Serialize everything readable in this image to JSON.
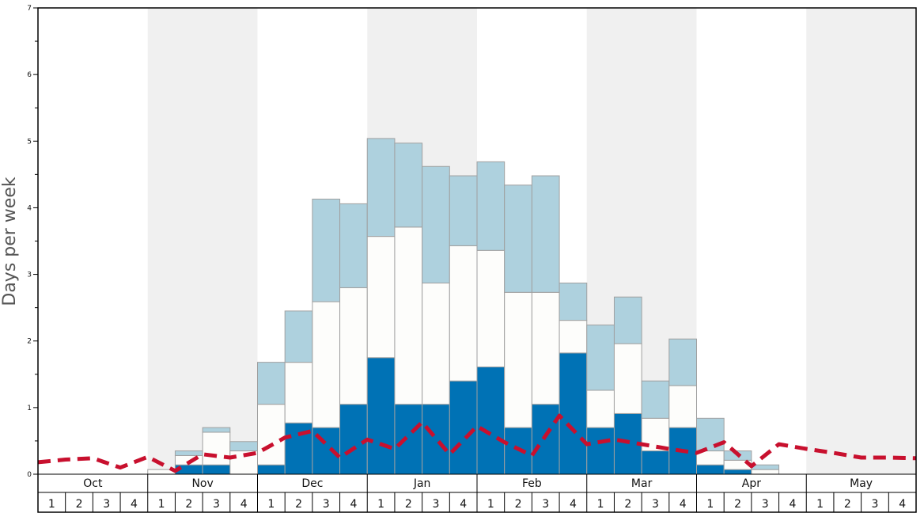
{
  "chart_data": {
    "type": "bar",
    "ylabel": "Days per week",
    "ylim": [
      0,
      7
    ],
    "yticks": [
      "0",
      "1",
      "2",
      "3",
      "4",
      "5",
      "6",
      "7"
    ],
    "months": [
      "Oct",
      "Nov",
      "Dec",
      "Jan",
      "Feb",
      "Mar",
      "Apr",
      "May"
    ],
    "weeks": [
      "1",
      "2",
      "3",
      "4"
    ],
    "stack_series": [
      {
        "values": [
          0,
          0,
          0,
          0,
          0,
          0.14,
          0.14,
          0,
          0.14,
          0.77,
          0.7,
          1.05,
          1.75,
          1.05,
          1.05,
          1.4,
          1.61,
          0.7,
          1.05,
          1.82,
          0.7,
          0.91,
          0.35,
          0.7,
          0.14,
          0.07,
          0,
          0,
          0,
          0,
          0,
          0
        ]
      },
      {
        "values": [
          0,
          0,
          0,
          0,
          0.07,
          0.28,
          0.63,
          0.35,
          1.05,
          1.68,
          2.59,
          2.8,
          3.57,
          3.71,
          2.87,
          3.43,
          3.36,
          2.73,
          2.73,
          2.31,
          1.26,
          1.96,
          0.84,
          1.33,
          0.35,
          0.21,
          0.07,
          0,
          0,
          0,
          0,
          0
        ]
      },
      {
        "values": [
          0,
          0,
          0,
          0,
          0.07,
          0.35,
          0.7,
          0.49,
          1.68,
          2.45,
          4.13,
          4.06,
          5.04,
          4.97,
          4.62,
          4.48,
          4.69,
          4.34,
          4.48,
          2.87,
          2.24,
          2.66,
          1.4,
          2.03,
          0.84,
          0.35,
          0.14,
          0,
          0,
          0,
          0,
          0
        ]
      }
    ],
    "line": {
      "values": [
        0.18,
        0.22,
        0.24,
        0.1,
        0.26,
        0.05,
        0.3,
        0.25,
        0.32,
        0.55,
        0.65,
        0.25,
        0.52,
        0.38,
        0.78,
        0.3,
        0.72,
        0.48,
        0.28,
        0.88,
        0.45,
        0.52,
        0.45,
        0.38,
        0.32,
        0.48,
        0.12,
        0.45,
        0.38,
        0.32,
        0.25,
        0.25,
        0.24
      ]
    },
    "colors": {
      "stack": [
        "#0072b5",
        "#fdfdfb",
        "#aed1de"
      ],
      "bar_stroke": "#a0a0a0",
      "line": "#c8102e",
      "shade": "#f0f0f0",
      "axis": "#000000"
    },
    "shaded_months": [
      "Nov",
      "Jan",
      "Mar",
      "May"
    ],
    "grid": false
  }
}
